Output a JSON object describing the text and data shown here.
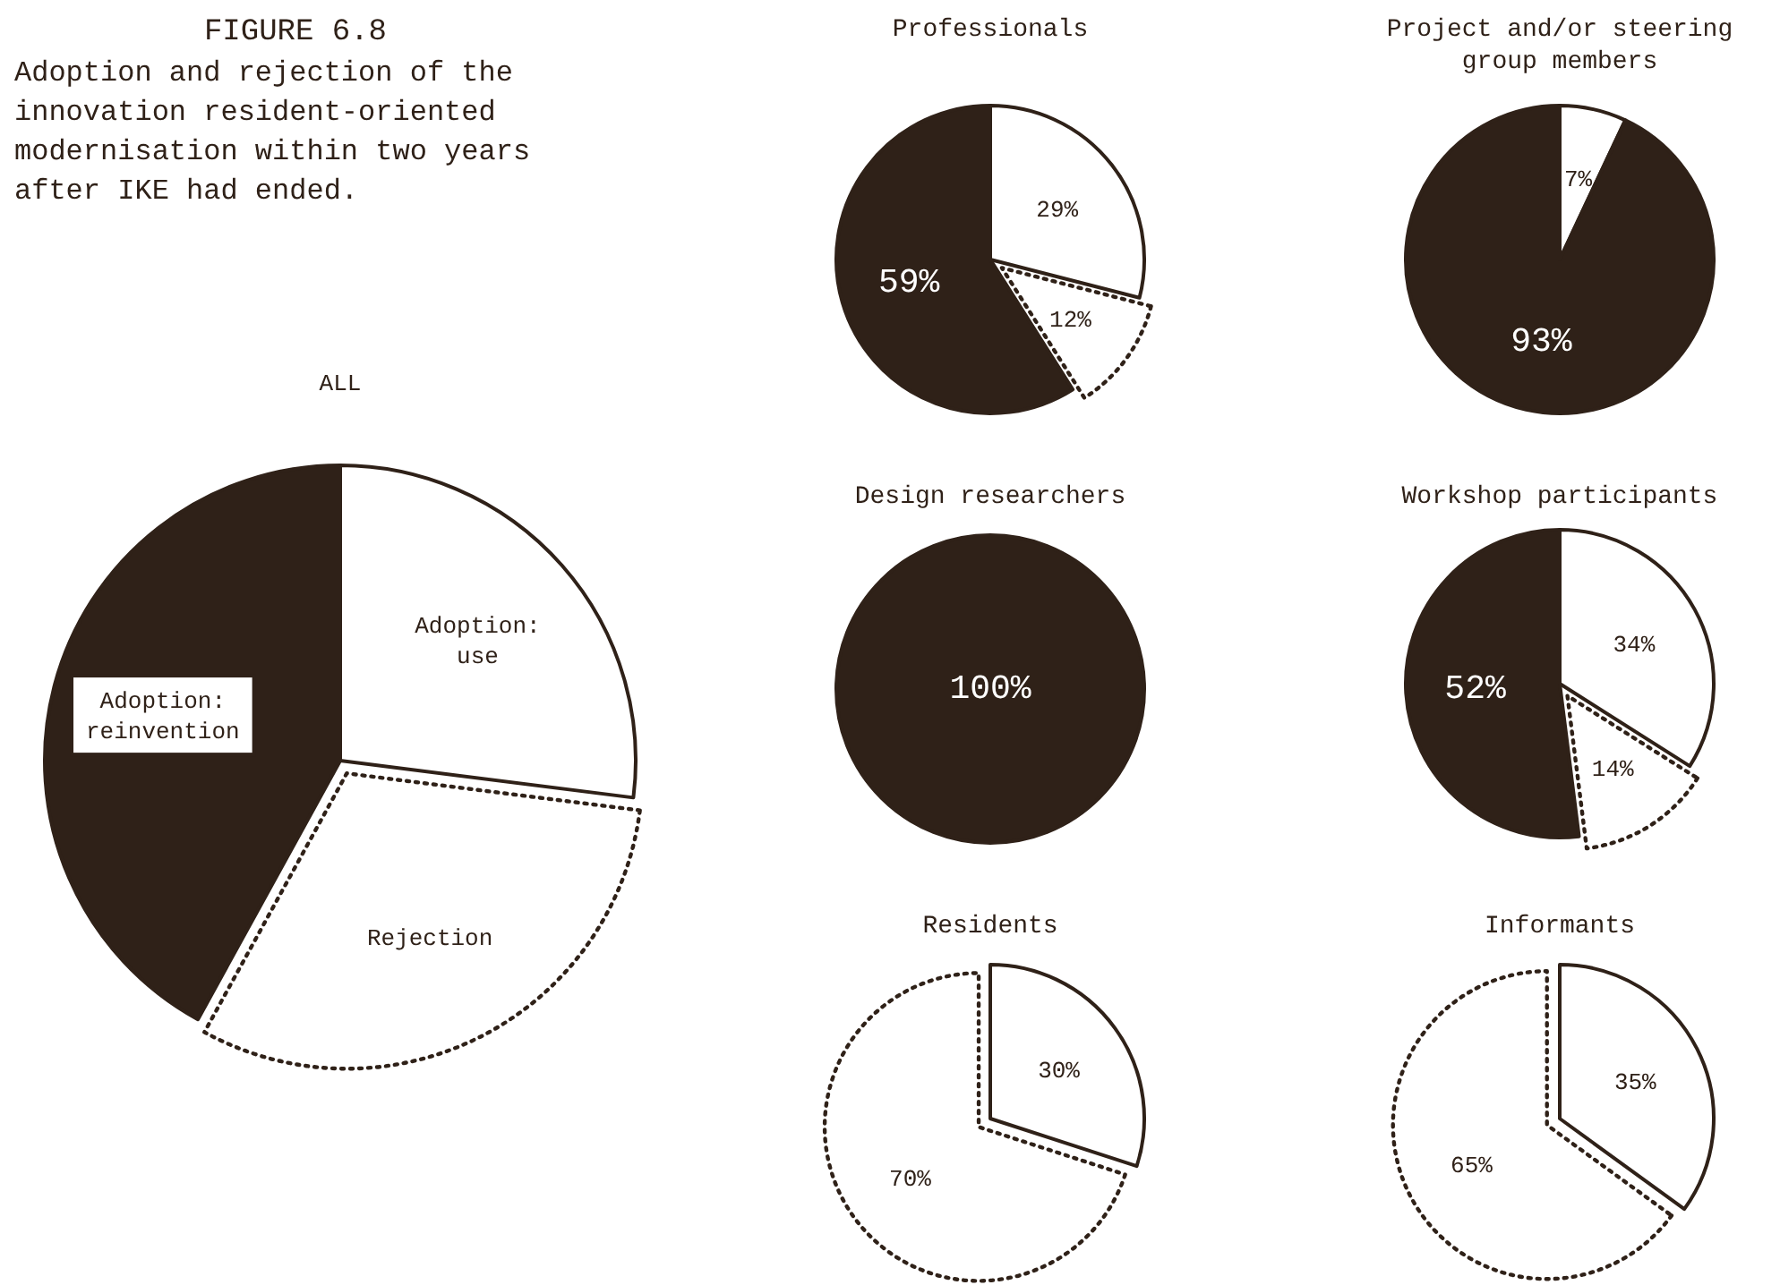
{
  "chart_data": [
    {
      "type": "pie",
      "title": "ALL",
      "annotations": [
        "FIGURE 6.8",
        "Adoption and rejection of the innovation resident-oriented modernisation within two years after IKE had ended."
      ],
      "categories": [
        "Adoption: use",
        "Rejection",
        "Adoption: reinvention"
      ],
      "values": [
        27,
        31,
        42
      ],
      "colors": [
        "#ffffff",
        "#ffffff",
        "#2f2118"
      ]
    },
    {
      "type": "pie",
      "title": "Professionals",
      "categories": [
        null,
        null,
        null
      ],
      "values": [
        29,
        12,
        59
      ],
      "value_labels": [
        "29%",
        "12%",
        "59%"
      ],
      "colors": [
        "#ffffff",
        "#ffffff",
        "#2f2118"
      ]
    },
    {
      "type": "pie",
      "title": "Project and/or steering group members",
      "categories": [
        null,
        null
      ],
      "values": [
        7,
        93
      ],
      "value_labels": [
        "7%",
        "93%"
      ],
      "colors": [
        "#ffffff",
        "#2f2118"
      ]
    },
    {
      "type": "pie",
      "title": "Design researchers",
      "categories": [
        null
      ],
      "values": [
        100
      ],
      "value_labels": [
        "100%"
      ],
      "colors": [
        "#2f2118"
      ]
    },
    {
      "type": "pie",
      "title": "Workshop participants",
      "categories": [
        null,
        null,
        null
      ],
      "values": [
        34,
        14,
        52
      ],
      "value_labels": [
        "34%",
        "14%",
        "52%"
      ],
      "colors": [
        "#ffffff",
        "#ffffff",
        "#2f2118"
      ]
    },
    {
      "type": "pie",
      "title": "Residents",
      "categories": [
        null,
        null
      ],
      "values": [
        30,
        70
      ],
      "value_labels": [
        "30%",
        "70%"
      ],
      "colors": [
        "#ffffff",
        "#ffffff"
      ]
    },
    {
      "type": "pie",
      "title": "Informants",
      "categories": [
        null,
        null
      ],
      "values": [
        35,
        65
      ],
      "value_labels": [
        "35%",
        "65%"
      ],
      "colors": [
        "#ffffff",
        "#ffffff"
      ]
    }
  ]
}
